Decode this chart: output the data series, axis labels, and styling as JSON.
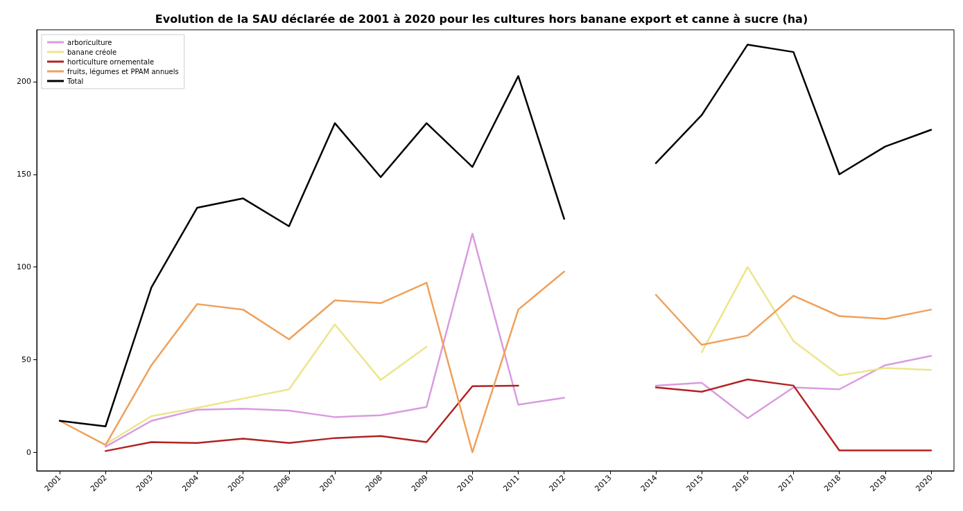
{
  "chart_data": {
    "type": "line",
    "title": "Evolution de la SAU déclarée de 2001 à 2020 pour les cultures hors banane export et canne à sucre (ha)",
    "categories": [
      "2001",
      "2002",
      "2003",
      "2004",
      "2005",
      "2006",
      "2007",
      "2008",
      "2009",
      "2010",
      "2011",
      "2012",
      "2013",
      "2014",
      "2015",
      "2016",
      "2017",
      "2018",
      "2019",
      "2020"
    ],
    "series": [
      {
        "name": "arboriculture",
        "color": "#d99be0",
        "values": [
          null,
          3,
          17,
          23,
          23.5,
          22.5,
          19,
          20,
          24.5,
          118,
          25.7,
          29.4,
          null,
          36,
          37.5,
          18.4,
          35,
          34,
          47,
          52
        ]
      },
      {
        "name": "banane créole",
        "color": "#ece58a",
        "values": [
          null,
          4.4,
          19.5,
          24,
          29,
          34,
          69,
          39,
          57,
          null,
          null,
          null,
          null,
          null,
          54,
          100,
          60,
          41.5,
          45.5,
          44.5
        ]
      },
      {
        "name": "horticulture ornementale",
        "color": "#b22222",
        "values": [
          null,
          0.7,
          5.5,
          5,
          7.4,
          5,
          7.7,
          8.8,
          5.5,
          35.7,
          36,
          null,
          null,
          35,
          32.7,
          39.3,
          36,
          1,
          1,
          1
        ]
      },
      {
        "name": "fruits, légumes et PPAM annuels",
        "color": "#f0a05a",
        "values": [
          17,
          4,
          47,
          80,
          77,
          61,
          82,
          80.5,
          91.5,
          0,
          77,
          97.5,
          null,
          85,
          58,
          63,
          84.5,
          73.5,
          72,
          77
        ]
      },
      {
        "name": "Total",
        "color": "#000000",
        "values": [
          17,
          14,
          89,
          132,
          137,
          122,
          177.6,
          148.5,
          177.6,
          154,
          203,
          126,
          null,
          156,
          182,
          220,
          216,
          150,
          165,
          174
        ]
      }
    ],
    "ylim": [
      -10,
      228
    ],
    "yticks": [
      0,
      50,
      100,
      150,
      200
    ],
    "grid": false,
    "legend": "top left",
    "marker": "none",
    "line_style": "solid"
  }
}
